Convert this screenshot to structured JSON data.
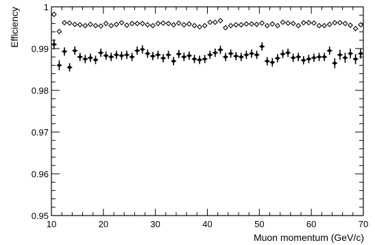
{
  "chart_data": {
    "type": "scatter",
    "title": "",
    "xlabel": "Muon momentum (GeV/c)",
    "ylabel": "Efficiency",
    "xlim": [
      10,
      70
    ],
    "ylim": [
      0.95,
      1.0
    ],
    "x_ticks": [
      10,
      20,
      30,
      40,
      50,
      60,
      70
    ],
    "x_tick_labels": [
      "10",
      "20",
      "30",
      "40",
      "50",
      "60",
      "70"
    ],
    "y_ticks": [
      0.95,
      0.96,
      0.97,
      0.98,
      0.99,
      1.0
    ],
    "y_tick_labels": [
      "0.95",
      "0.96",
      "0.97",
      "0.98",
      "0.99",
      "1"
    ],
    "grid": false,
    "legend": "none",
    "series": [
      {
        "marker": "open-diamond",
        "x": [
          10.5,
          11.5,
          12.5,
          13.5,
          14.5,
          15.5,
          16.5,
          17.5,
          18.5,
          19.5,
          20.5,
          21.5,
          22.5,
          23.5,
          24.5,
          25.5,
          26.5,
          27.5,
          28.5,
          29.5,
          30.5,
          31.5,
          32.5,
          33.5,
          34.5,
          35.5,
          36.5,
          37.5,
          38.5,
          39.5,
          40.5,
          41.5,
          42.5,
          43.5,
          44.5,
          45.5,
          46.5,
          47.5,
          48.5,
          49.5,
          50.5,
          51.5,
          52.5,
          53.5,
          54.5,
          55.5,
          56.5,
          57.5,
          58.5,
          59.5,
          60.5,
          61.5,
          62.5,
          63.5,
          64.5,
          65.5,
          66.5,
          67.5,
          68.5,
          69.5
        ],
        "y": [
          0.9982,
          0.9941,
          0.9962,
          0.9961,
          0.9958,
          0.9957,
          0.9955,
          0.9958,
          0.9955,
          0.9954,
          0.996,
          0.9955,
          0.9958,
          0.9962,
          0.9956,
          0.996,
          0.996,
          0.996,
          0.9957,
          0.9955,
          0.996,
          0.9961,
          0.996,
          0.9957,
          0.9961,
          0.9957,
          0.9959,
          0.9955,
          0.9952,
          0.9955,
          0.9963,
          0.9963,
          0.9967,
          0.995,
          0.9955,
          0.9957,
          0.9957,
          0.9959,
          0.9959,
          0.9958,
          0.9961,
          0.9955,
          0.9959,
          0.9955,
          0.9963,
          0.9961,
          0.996,
          0.9955,
          0.9962,
          0.9962,
          0.9961,
          0.9955,
          0.9955,
          0.9958,
          0.9962,
          0.9962,
          0.996,
          0.9956,
          0.9948,
          0.9957
        ],
        "err": [
          0.0006,
          0.0004,
          0.0004,
          0.0004,
          0.0004,
          0.0004,
          0.0004,
          0.0004,
          0.0004,
          0.0004,
          0.0004,
          0.0004,
          0.0004,
          0.0004,
          0.0004,
          0.0004,
          0.0004,
          0.0004,
          0.0004,
          0.0004,
          0.0004,
          0.0004,
          0.0004,
          0.0004,
          0.0004,
          0.0004,
          0.0004,
          0.0004,
          0.0004,
          0.0004,
          0.0004,
          0.0004,
          0.0004,
          0.0004,
          0.0004,
          0.0004,
          0.0004,
          0.0004,
          0.0004,
          0.0004,
          0.0004,
          0.0004,
          0.0004,
          0.0004,
          0.0004,
          0.0004,
          0.0004,
          0.0004,
          0.0004,
          0.0004,
          0.0004,
          0.0004,
          0.0004,
          0.0004,
          0.0004,
          0.0004,
          0.0004,
          0.0004,
          0.0006,
          0.0004
        ]
      },
      {
        "marker": "filled-cross",
        "x": [
          10.5,
          11.5,
          12.5,
          13.5,
          14.5,
          15.5,
          16.5,
          17.5,
          18.5,
          19.5,
          20.5,
          21.5,
          22.5,
          23.5,
          24.5,
          25.5,
          26.5,
          27.5,
          28.5,
          29.5,
          30.5,
          31.5,
          32.5,
          33.5,
          34.5,
          35.5,
          36.5,
          37.5,
          38.5,
          39.5,
          40.5,
          41.5,
          42.5,
          43.5,
          44.5,
          45.5,
          46.5,
          47.5,
          48.5,
          49.5,
          50.5,
          51.5,
          52.5,
          53.5,
          54.5,
          55.5,
          56.5,
          57.5,
          58.5,
          59.5,
          60.5,
          61.5,
          62.5,
          63.5,
          64.5,
          65.5,
          66.5,
          67.5,
          68.5,
          69.5
        ],
        "y": [
          0.991,
          0.986,
          0.9893,
          0.9855,
          0.9895,
          0.988,
          0.9875,
          0.9878,
          0.9873,
          0.989,
          0.9883,
          0.988,
          0.9885,
          0.9883,
          0.9885,
          0.988,
          0.9895,
          0.9898,
          0.9888,
          0.9882,
          0.9885,
          0.9877,
          0.9885,
          0.987,
          0.9887,
          0.988,
          0.9883,
          0.9875,
          0.9873,
          0.9875,
          0.9885,
          0.989,
          0.9897,
          0.988,
          0.9888,
          0.9882,
          0.988,
          0.9885,
          0.9888,
          0.9885,
          0.9905,
          0.987,
          0.9867,
          0.9877,
          0.9887,
          0.989,
          0.9878,
          0.988,
          0.9872,
          0.9875,
          0.9878,
          0.988,
          0.988,
          0.9895,
          0.9865,
          0.9885,
          0.9878,
          0.9888,
          0.9875,
          0.9888
        ],
        "err": [
          0.0012,
          0.0012,
          0.001,
          0.001,
          0.001,
          0.001,
          0.001,
          0.001,
          0.001,
          0.001,
          0.001,
          0.001,
          0.001,
          0.001,
          0.001,
          0.001,
          0.001,
          0.001,
          0.001,
          0.001,
          0.001,
          0.001,
          0.001,
          0.001,
          0.001,
          0.001,
          0.001,
          0.001,
          0.001,
          0.001,
          0.001,
          0.001,
          0.001,
          0.001,
          0.001,
          0.001,
          0.001,
          0.001,
          0.001,
          0.001,
          0.001,
          0.001,
          0.001,
          0.001,
          0.001,
          0.001,
          0.001,
          0.001,
          0.001,
          0.001,
          0.001,
          0.001,
          0.001,
          0.001,
          0.0012,
          0.0012,
          0.0012,
          0.0012,
          0.0012,
          0.0012
        ]
      }
    ]
  }
}
